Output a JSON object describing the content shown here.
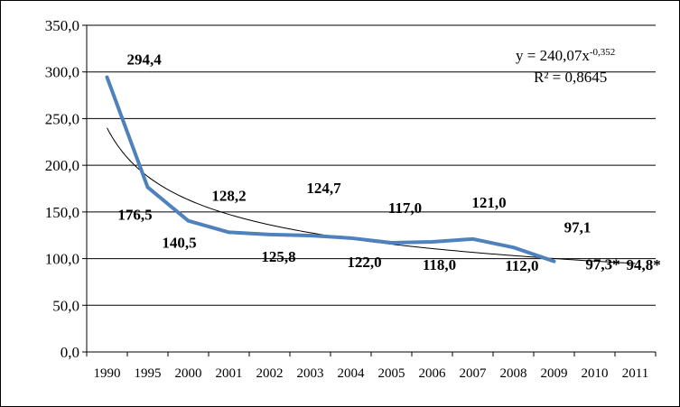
{
  "chart_data": {
    "type": "line",
    "categories": [
      "1990",
      "1995",
      "2000",
      "2001",
      "2002",
      "2003",
      "2004",
      "2005",
      "2006",
      "2007",
      "2008",
      "2009",
      "2010",
      "2011"
    ],
    "series": [
      {
        "values": [
          294.4,
          176.5,
          140.5,
          128.2,
          125.8,
          124.7,
          122.0,
          117.0,
          118.0,
          121.0,
          112.0,
          97.1,
          null,
          null
        ],
        "color": "#4F81BD"
      }
    ],
    "data_labels": [
      "294,4",
      "176,5",
      "140,5",
      "128,2",
      "125,8",
      "124,7",
      "122,0",
      "117,0",
      "118,0",
      "121,0",
      "112,0",
      "97,1",
      "97,3*",
      "94,8*"
    ],
    "y_tick_labels": [
      "0,0",
      "50,0",
      "100,0",
      "150,0",
      "200,0",
      "250,0",
      "300,0",
      "350,0"
    ],
    "ylim": [
      0,
      350
    ],
    "grid": true,
    "trendline": {
      "type": "power",
      "coefficient": 240.07,
      "exponent": -0.352,
      "equation_prefix": "y = 240,07x",
      "equation_exponent": "-0,352",
      "r_squared_label": "R² = 0,8645",
      "color": "#000000"
    },
    "title": "",
    "xlabel": "",
    "ylabel": ""
  }
}
